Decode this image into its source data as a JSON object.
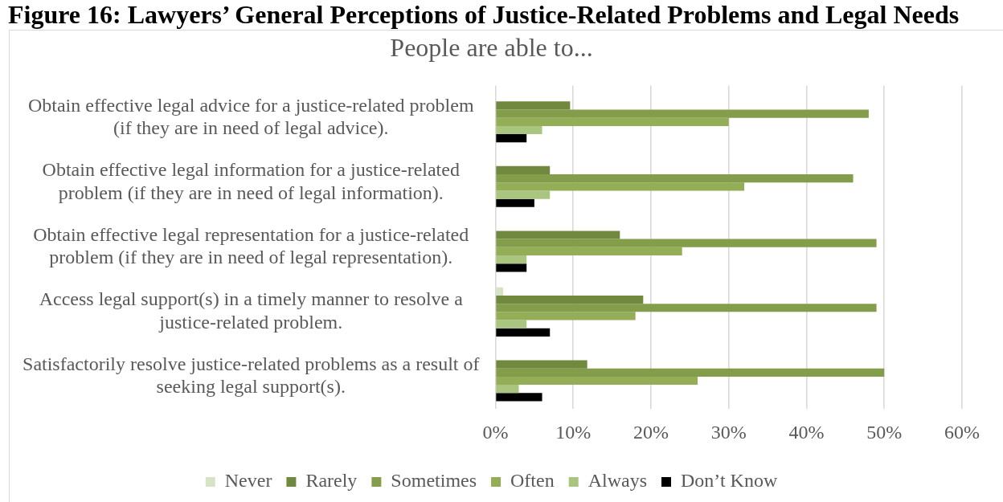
{
  "chart_data": {
    "type": "bar",
    "orientation": "horizontal",
    "title": "Figure 16: Lawyers’ General Perceptions of Justice-Related Problems and Legal Needs",
    "subtitle": "People are able to...",
    "categories": [
      "Obtain effective legal advice for a justice-related problem (if they are in need of legal advice).",
      "Obtain effective legal information for a justice-related problem (if they are in need of legal information).",
      "Obtain effective legal representation for a justice-related problem (if they are in need of legal representation).",
      "Access legal support(s) in a timely manner to resolve a justice-related problem.",
      "Satisfactorily resolve justice-related problems as a result of seeking legal support(s)."
    ],
    "series": [
      {
        "name": "Never",
        "color": "#d6e3c4",
        "values": [
          0,
          0,
          0,
          1,
          0
        ]
      },
      {
        "name": "Rarely",
        "color": "#71893f",
        "values": [
          9.6,
          7,
          16,
          19,
          11.8
        ]
      },
      {
        "name": "Sometimes",
        "color": "#839d4b",
        "values": [
          48,
          46,
          49,
          49,
          50
        ]
      },
      {
        "name": "Often",
        "color": "#93ae56",
        "values": [
          30,
          32,
          24,
          18,
          26
        ]
      },
      {
        "name": "Always",
        "color": "#a9c57f",
        "values": [
          6,
          7,
          4,
          4,
          3
        ]
      },
      {
        "name": "Don’t Know",
        "color": "#000000",
        "values": [
          4,
          5,
          4,
          7,
          6
        ]
      }
    ],
    "xlim": [
      0,
      60
    ],
    "xticks": [
      {
        "value": 0,
        "label": "0%"
      },
      {
        "value": 10,
        "label": "10%"
      },
      {
        "value": 20,
        "label": "20%"
      },
      {
        "value": 30,
        "label": "30%"
      },
      {
        "value": 40,
        "label": "40%"
      },
      {
        "value": 50,
        "label": "50%"
      },
      {
        "value": 60,
        "label": "60%"
      }
    ],
    "grid": "x",
    "legend": "bottom"
  }
}
